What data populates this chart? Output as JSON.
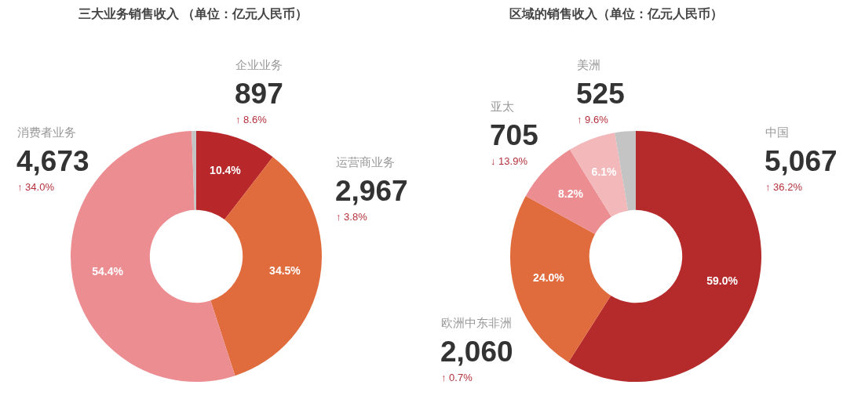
{
  "chart_data": [
    {
      "type": "donut",
      "title": "三大业务销售收入 （单位：亿元人民币）",
      "categories": [
        "企业业务",
        "运营商业务",
        "消费者业务",
        null
      ],
      "values": [
        897,
        2967,
        4673,
        50
      ],
      "colors": [
        "#b8282b",
        "#e06c3e",
        "#ec8d92",
        "#c4c4c4"
      ],
      "value_labels": [
        "897",
        "2,967",
        "4,673",
        null
      ],
      "annotations": [
        "10.4%",
        "34.5%",
        "54.4%",
        "↑ 8.6%",
        "↑ 3.8%",
        "↑ 34.0%"
      ]
    },
    {
      "type": "donut",
      "title": "区域的销售收入（单位：亿元人民币）",
      "categories": [
        "中国",
        "欧洲中东非洲",
        "亚太",
        "美洲",
        null
      ],
      "values": [
        5067,
        2060,
        705,
        525,
        230
      ],
      "colors": [
        "#b52a2b",
        "#e06c3e",
        "#ec8d92",
        "#f2b8ba",
        "#c4c4c4"
      ],
      "value_labels": [
        "5,067",
        "2,060",
        "705",
        "525",
        null
      ],
      "annotations": [
        "59.0%",
        "24.0%",
        "8.2%",
        "6.1%",
        "↑ 36.2%",
        "↑ 0.7%",
        "↓ 13.9%",
        "↑ 9.6%"
      ]
    }
  ]
}
